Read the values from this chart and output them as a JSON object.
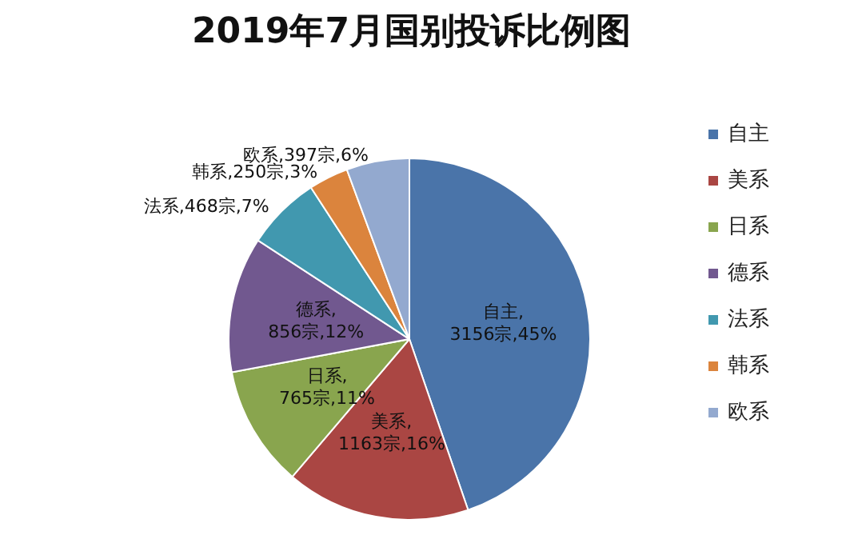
{
  "chart_data": {
    "type": "pie",
    "title": "2019年7月国别投诉比例图",
    "categories": [
      "自主",
      "美系",
      "日系",
      "德系",
      "法系",
      "韩系",
      "欧系"
    ],
    "values": [
      3156,
      1163,
      765,
      856,
      468,
      250,
      397
    ],
    "colors": [
      "#4a74a9",
      "#aa4643",
      "#89a54e",
      "#71588f",
      "#4198af",
      "#db843d",
      "#93a9cf"
    ],
    "value_labels": [
      "自主,3156宗,45%",
      "美系,1163宗,16%",
      "日系,765宗,11%",
      "德系,856宗,12%",
      "法系,468宗,7%",
      "韩系,250宗,3%",
      "欧系,397宗,6%"
    ],
    "legend": "right"
  }
}
